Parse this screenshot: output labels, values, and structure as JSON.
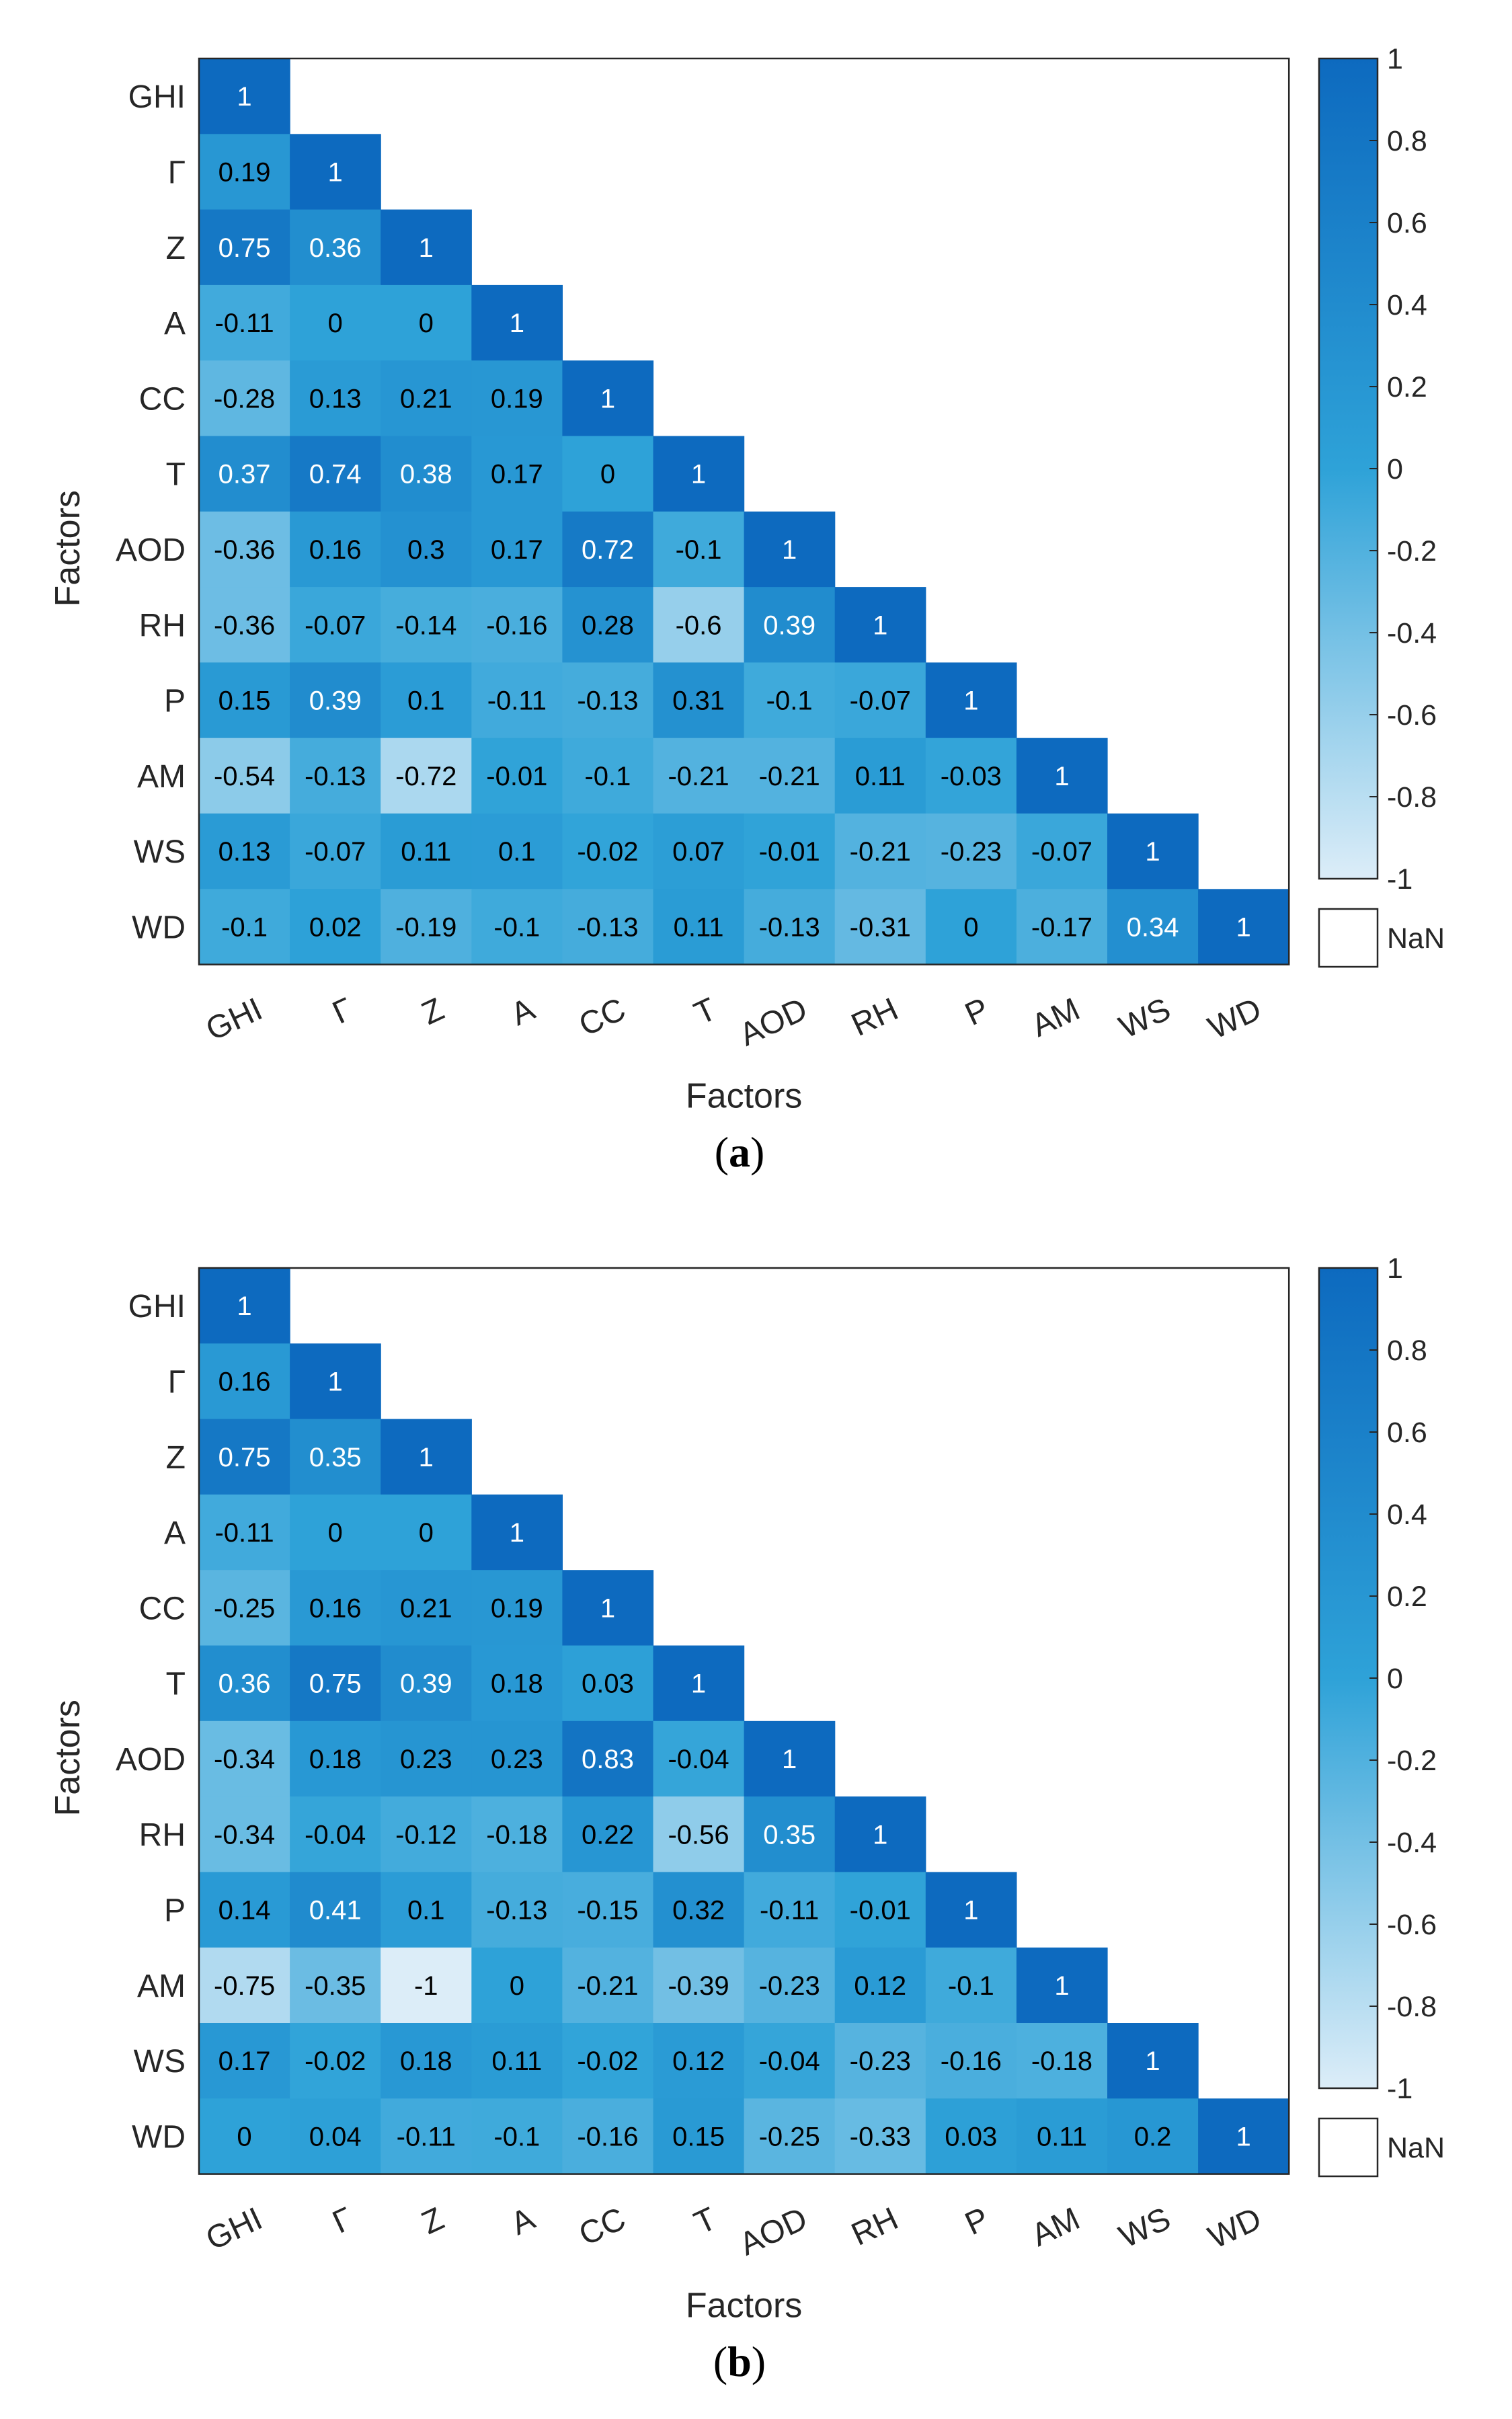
{
  "chart_data": [
    {
      "type": "heatmap",
      "panel_label_parts": [
        "(",
        "a",
        ")"
      ],
      "xlabel": "Factors",
      "ylabel": "Factors",
      "categories": [
        "GHI",
        "Γ",
        "Z",
        "A",
        "CC",
        "T",
        "AOD",
        "RH",
        "P",
        "AM",
        "WS",
        "WD"
      ],
      "values": [
        [
          1
        ],
        [
          0.19,
          1
        ],
        [
          0.75,
          0.36,
          1
        ],
        [
          -0.11,
          0,
          0,
          1
        ],
        [
          -0.28,
          0.13,
          0.21,
          0.19,
          1
        ],
        [
          0.37,
          0.74,
          0.38,
          0.17,
          0,
          1
        ],
        [
          -0.36,
          0.16,
          0.3,
          0.17,
          0.72,
          -0.1,
          1
        ],
        [
          -0.36,
          -0.07,
          -0.14,
          -0.16,
          0.28,
          -0.6,
          0.39,
          1
        ],
        [
          0.15,
          0.39,
          0.1,
          -0.11,
          -0.13,
          0.31,
          -0.1,
          -0.07,
          1
        ],
        [
          -0.54,
          -0.13,
          -0.72,
          -0.01,
          -0.1,
          -0.21,
          -0.21,
          0.11,
          -0.03,
          1
        ],
        [
          0.13,
          -0.07,
          0.11,
          0.1,
          -0.02,
          0.07,
          -0.01,
          -0.21,
          -0.23,
          -0.07,
          1
        ],
        [
          -0.1,
          0.02,
          -0.19,
          -0.1,
          -0.13,
          0.11,
          -0.13,
          -0.31,
          0,
          -0.17,
          0.34,
          1
        ]
      ],
      "colorbar": {
        "range": [
          -1,
          1
        ],
        "ticks": [
          "1",
          "0.8",
          "0.6",
          "0.4",
          "0.2",
          "0",
          "-0.2",
          "-0.4",
          "-0.6",
          "-0.8",
          "-1"
        ],
        "nan_label": "NaN"
      },
      "colors": {
        "high": "#0d6abf",
        "mid": "#2ea2d8",
        "low": "#dcedf8",
        "text_dark": "#000000",
        "text_light": "#ffffff"
      }
    },
    {
      "type": "heatmap",
      "panel_label_parts": [
        "(",
        "b",
        ")"
      ],
      "xlabel": "Factors",
      "ylabel": "Factors",
      "categories": [
        "GHI",
        "Γ",
        "Z",
        "A",
        "CC",
        "T",
        "AOD",
        "RH",
        "P",
        "AM",
        "WS",
        "WD"
      ],
      "values": [
        [
          1
        ],
        [
          0.16,
          1
        ],
        [
          0.75,
          0.35,
          1
        ],
        [
          -0.11,
          0,
          0,
          1
        ],
        [
          -0.25,
          0.16,
          0.21,
          0.19,
          1
        ],
        [
          0.36,
          0.75,
          0.39,
          0.18,
          0.03,
          1
        ],
        [
          -0.34,
          0.18,
          0.23,
          0.23,
          0.83,
          -0.04,
          1
        ],
        [
          -0.34,
          -0.04,
          -0.12,
          -0.18,
          0.22,
          -0.56,
          0.35,
          1
        ],
        [
          0.14,
          0.41,
          0.1,
          -0.13,
          -0.15,
          0.32,
          -0.11,
          -0.01,
          1
        ],
        [
          -0.75,
          -0.35,
          -1,
          0,
          -0.21,
          -0.39,
          -0.23,
          0.12,
          -0.1,
          1
        ],
        [
          0.17,
          -0.02,
          0.18,
          0.11,
          -0.02,
          0.12,
          -0.04,
          -0.23,
          -0.16,
          -0.18,
          1
        ],
        [
          0,
          0.04,
          -0.11,
          -0.1,
          -0.16,
          0.15,
          -0.25,
          -0.33,
          0.03,
          0.11,
          0.2,
          1
        ]
      ],
      "colorbar": {
        "range": [
          -1,
          1
        ],
        "ticks": [
          "1",
          "0.8",
          "0.6",
          "0.4",
          "0.2",
          "0",
          "-0.2",
          "-0.4",
          "-0.6",
          "-0.8",
          "-1"
        ],
        "nan_label": "NaN"
      },
      "colors": {
        "high": "#0d6abf",
        "mid": "#2ea2d8",
        "low": "#dcedf8",
        "text_dark": "#000000",
        "text_light": "#ffffff"
      }
    }
  ]
}
